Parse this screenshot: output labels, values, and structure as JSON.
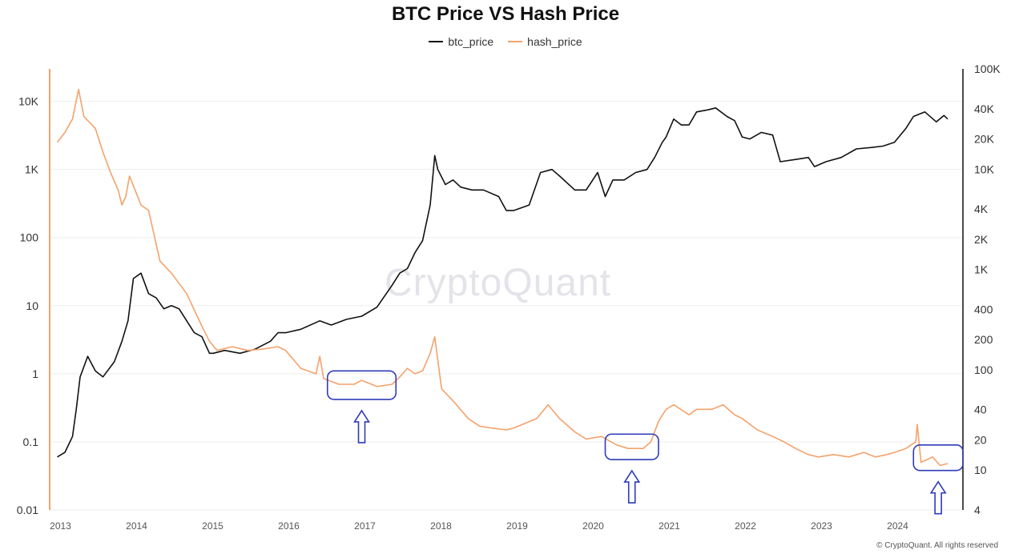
{
  "chart_data": {
    "type": "line",
    "title": "BTC Price VS Hash Price",
    "legend_position": "top-center",
    "grid": true,
    "x_ticks": [
      "2013",
      "2014",
      "2015",
      "2016",
      "2017",
      "2018",
      "2019",
      "2020",
      "2021",
      "2022",
      "2023",
      "2024"
    ],
    "x_range": [
      2012.9,
      2024.9
    ],
    "left_axis": {
      "scale": "log",
      "ylim": [
        0.01,
        30000
      ],
      "tick_values": [
        0.01,
        0.1,
        1,
        10,
        100,
        1000,
        10000
      ],
      "tick_labels": [
        "0.01",
        "0.1",
        "1",
        "10",
        "100",
        "1K",
        "10K"
      ],
      "color": "#f4a26b"
    },
    "right_axis": {
      "scale": "log",
      "ylim": [
        4,
        100000
      ],
      "tick_values": [
        4,
        10,
        20,
        40,
        100,
        200,
        400,
        1000,
        2000,
        4000,
        10000,
        20000,
        40000,
        100000
      ],
      "tick_labels": [
        "4",
        "10",
        "20",
        "40",
        "100",
        "200",
        "400",
        "1K",
        "2K",
        "4K",
        "10K",
        "20K",
        "40K",
        "100K"
      ],
      "color": "#111111"
    },
    "series": [
      {
        "name": "btc_price",
        "axis": "left",
        "color": "#111111",
        "x": [
          2013.0,
          2013.1,
          2013.2,
          2013.25,
          2013.3,
          2013.4,
          2013.5,
          2013.6,
          2013.75,
          2013.85,
          2013.93,
          2014.0,
          2014.1,
          2014.2,
          2014.3,
          2014.4,
          2014.5,
          2014.6,
          2014.7,
          2014.8,
          2014.9,
          2015.0,
          2015.05,
          2015.2,
          2015.4,
          2015.6,
          2015.8,
          2015.9,
          2016.0,
          2016.2,
          2016.45,
          2016.6,
          2016.8,
          2017.0,
          2017.2,
          2017.4,
          2017.5,
          2017.6,
          2017.7,
          2017.8,
          2017.9,
          2017.96,
          2018.0,
          2018.1,
          2018.2,
          2018.3,
          2018.45,
          2018.6,
          2018.8,
          2018.9,
          2019.0,
          2019.2,
          2019.35,
          2019.5,
          2019.6,
          2019.8,
          2019.95,
          2020.1,
          2020.2,
          2020.3,
          2020.45,
          2020.6,
          2020.75,
          2020.85,
          2020.95,
          2021.0,
          2021.1,
          2021.2,
          2021.3,
          2021.4,
          2021.55,
          2021.65,
          2021.8,
          2021.9,
          2022.0,
          2022.1,
          2022.25,
          2022.4,
          2022.5,
          2022.7,
          2022.87,
          2022.95,
          2023.1,
          2023.3,
          2023.5,
          2023.7,
          2023.85,
          2024.0,
          2024.15,
          2024.25,
          2024.4,
          2024.55,
          2024.65,
          2024.7
        ],
        "y": [
          0.06,
          0.07,
          0.12,
          0.3,
          0.9,
          1.8,
          1.1,
          0.9,
          1.5,
          3.0,
          6.0,
          25,
          30,
          15,
          13,
          9,
          10,
          9,
          6,
          4,
          3.5,
          2.0,
          2.0,
          2.2,
          2.0,
          2.3,
          3.0,
          4.0,
          4.0,
          4.5,
          6.0,
          5.2,
          6.3,
          7.0,
          9.5,
          20,
          30,
          35,
          60,
          90,
          300,
          1600,
          1000,
          600,
          700,
          550,
          500,
          500,
          400,
          250,
          250,
          300,
          900,
          1000,
          800,
          500,
          500,
          900,
          400,
          700,
          700,
          900,
          1000,
          1500,
          2500,
          3000,
          5500,
          4500,
          4500,
          7000,
          7500,
          8000,
          6000,
          5200,
          3000,
          2800,
          3500,
          3200,
          1300,
          1400,
          1500,
          1100,
          1300,
          1500,
          2000,
          2100,
          2200,
          2500,
          4000,
          6000,
          7000,
          5000,
          6200,
          5500
        ]
      },
      {
        "name": "hash_price",
        "axis": "left",
        "color": "#f4a26b",
        "x": [
          2013.0,
          2013.1,
          2013.2,
          2013.28,
          2013.35,
          2013.5,
          2013.6,
          2013.7,
          2013.8,
          2013.85,
          2013.9,
          2013.95,
          2014.1,
          2014.2,
          2014.35,
          2014.5,
          2014.7,
          2014.9,
          2015.0,
          2015.1,
          2015.3,
          2015.5,
          2015.7,
          2015.9,
          2016.0,
          2016.2,
          2016.4,
          2016.45,
          2016.5,
          2016.7,
          2016.9,
          2017.0,
          2017.2,
          2017.4,
          2017.5,
          2017.6,
          2017.7,
          2017.8,
          2017.9,
          2017.96,
          2018.05,
          2018.2,
          2018.4,
          2018.55,
          2018.7,
          2018.9,
          2019.0,
          2019.3,
          2019.45,
          2019.6,
          2019.8,
          2019.95,
          2020.15,
          2020.35,
          2020.5,
          2020.7,
          2020.8,
          2020.9,
          2021.0,
          2021.1,
          2021.3,
          2021.4,
          2021.6,
          2021.75,
          2021.9,
          2022.0,
          2022.2,
          2022.4,
          2022.55,
          2022.7,
          2022.87,
          2023.0,
          2023.2,
          2023.4,
          2023.6,
          2023.75,
          2023.9,
          2024.0,
          2024.15,
          2024.28,
          2024.3,
          2024.35,
          2024.5,
          2024.6,
          2024.7
        ],
        "y": [
          2500,
          3500,
          5500,
          15000,
          6000,
          4000,
          1800,
          900,
          500,
          300,
          400,
          800,
          300,
          250,
          45,
          30,
          15,
          5,
          3.0,
          2.2,
          2.5,
          2.2,
          2.3,
          2.5,
          2.2,
          1.2,
          1.0,
          1.8,
          0.85,
          0.7,
          0.7,
          0.8,
          0.65,
          0.7,
          0.9,
          1.2,
          1.0,
          1.1,
          2.0,
          3.5,
          0.6,
          0.4,
          0.22,
          0.17,
          0.16,
          0.15,
          0.16,
          0.22,
          0.35,
          0.22,
          0.14,
          0.11,
          0.12,
          0.09,
          0.08,
          0.08,
          0.1,
          0.2,
          0.3,
          0.35,
          0.25,
          0.3,
          0.3,
          0.35,
          0.25,
          0.22,
          0.15,
          0.12,
          0.1,
          0.08,
          0.065,
          0.06,
          0.065,
          0.06,
          0.07,
          0.06,
          0.065,
          0.07,
          0.08,
          0.1,
          0.18,
          0.05,
          0.06,
          0.045,
          0.048
        ]
      }
    ],
    "annotations": [
      {
        "type": "box-arrow",
        "label": "",
        "x0": 2016.55,
        "x1": 2017.45,
        "y0": 0.42,
        "y1": 1.1
      },
      {
        "type": "box-arrow",
        "label": "",
        "x0": 2020.2,
        "x1": 2020.9,
        "y0": 0.055,
        "y1": 0.13
      },
      {
        "type": "box-arrow",
        "label": "",
        "x0": 2024.25,
        "x1": 2024.9,
        "y0": 0.038,
        "y1": 0.09
      }
    ],
    "watermark": "CryptoQuant",
    "copyright": "© CryptoQuant. All rights reserved"
  }
}
